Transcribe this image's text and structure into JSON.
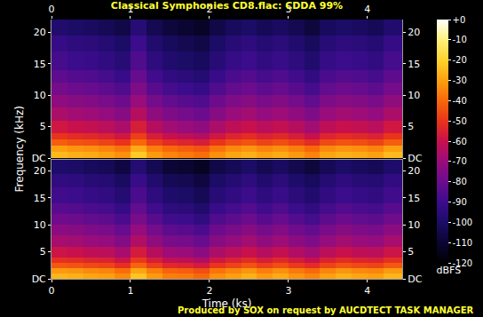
{
  "chart_data": {
    "type": "heatmap",
    "title": "Classical Symphonies CD8.flac: CDDA 99%",
    "x_label": "Time (ks)",
    "y_label": "Frequency (kHz)",
    "annotations": [
      "Produced by SOX on request by AUCDTECT TASK MANAGER"
    ],
    "xlim": [
      0,
      4.44
    ],
    "xticks": [
      0,
      1,
      2,
      3,
      4
    ],
    "ylim": [
      0,
      22.05
    ],
    "yticks": [
      {
        "value": 0,
        "label": "DC"
      },
      5,
      10,
      15,
      20
    ],
    "x": [
      0,
      0.2,
      0.4,
      0.6,
      0.8,
      1.0,
      1.2,
      1.4,
      1.6,
      1.8,
      2.0,
      2.2,
      2.4,
      2.6,
      2.8,
      3.0,
      3.2,
      3.4,
      3.6,
      3.8,
      4.0,
      4.2,
      4.44
    ],
    "y": [
      0,
      1,
      2,
      3,
      4,
      6,
      8,
      10,
      12,
      14,
      17,
      19.5,
      22.05
    ],
    "colorbar": {
      "range": [
        -120,
        0
      ],
      "ticks": [
        {
          "value": 0,
          "label": "+0"
        },
        -10,
        -20,
        -30,
        -40,
        -50,
        -60,
        -70,
        -80,
        -90,
        -100,
        -110,
        -120
      ],
      "title": "dBFS"
    },
    "cells": [
      [
        [
          -25,
          -27,
          -28,
          -30,
          -33,
          -22,
          -31,
          -35,
          -37,
          -39,
          -33,
          -29,
          -27,
          -30,
          -28,
          -31,
          -35,
          -29,
          -27,
          -28,
          -30,
          -25
        ],
        [
          -30,
          -32,
          -33,
          -35,
          -38,
          -28,
          -36,
          -40,
          -42,
          -44,
          -38,
          -34,
          -32,
          -35,
          -33,
          -36,
          -40,
          -34,
          -32,
          -33,
          -35,
          -30
        ],
        [
          -42,
          -44,
          -45,
          -47,
          -50,
          -40,
          -48,
          -52,
          -54,
          -56,
          -50,
          -46,
          -44,
          -47,
          -45,
          -48,
          -52,
          -46,
          -44,
          -45,
          -47,
          -42
        ],
        [
          -50,
          -52,
          -53,
          -55,
          -58,
          -48,
          -56,
          -60,
          -62,
          -64,
          -58,
          -54,
          -52,
          -55,
          -53,
          -56,
          -60,
          -54,
          -52,
          -53,
          -55,
          -50
        ],
        [
          -58,
          -60,
          -61,
          -63,
          -66,
          -56,
          -64,
          -68,
          -70,
          -72,
          -66,
          -62,
          -60,
          -63,
          -61,
          -64,
          -68,
          -62,
          -60,
          -61,
          -63,
          -58
        ],
        [
          -66,
          -68,
          -69,
          -71,
          -74,
          -64,
          -72,
          -76,
          -78,
          -80,
          -74,
          -70,
          -68,
          -71,
          -69,
          -72,
          -76,
          -70,
          -68,
          -69,
          -71,
          -66
        ],
        [
          -72,
          -74,
          -75,
          -77,
          -80,
          -70,
          -78,
          -82,
          -84,
          -86,
          -80,
          -76,
          -74,
          -77,
          -75,
          -78,
          -82,
          -76,
          -74,
          -75,
          -77,
          -72
        ],
        [
          -78,
          -80,
          -81,
          -83,
          -86,
          -76,
          -84,
          -88,
          -90,
          -92,
          -86,
          -82,
          -80,
          -83,
          -81,
          -84,
          -88,
          -82,
          -80,
          -81,
          -83,
          -78
        ],
        [
          -83,
          -85,
          -86,
          -88,
          -91,
          -81,
          -89,
          -93,
          -95,
          -97,
          -91,
          -87,
          -85,
          -88,
          -86,
          -89,
          -93,
          -87,
          -85,
          -86,
          -88,
          -83
        ],
        [
          -88,
          -90,
          -91,
          -93,
          -96,
          -86,
          -94,
          -98,
          -100,
          -102,
          -96,
          -92,
          -90,
          -93,
          -91,
          -94,
          -98,
          -92,
          -90,
          -91,
          -93,
          -88
        ],
        [
          -92,
          -94,
          -95,
          -97,
          -100,
          -90,
          -98,
          -102,
          -104,
          -106,
          -100,
          -96,
          -94,
          -97,
          -95,
          -98,
          -102,
          -96,
          -94,
          -95,
          -97,
          -92
        ],
        [
          -98,
          -100,
          -101,
          -103,
          -106,
          -96,
          -104,
          -108,
          -110,
          -112,
          -106,
          -102,
          -100,
          -103,
          -101,
          -104,
          -108,
          -102,
          -100,
          -101,
          -103,
          -98
        ]
      ],
      [
        [
          -26,
          -27,
          -29,
          -30,
          -34,
          -23,
          -31,
          -36,
          -37,
          -40,
          -33,
          -30,
          -27,
          -31,
          -28,
          -32,
          -35,
          -30,
          -27,
          -29,
          -30,
          -26
        ],
        [
          -31,
          -32,
          -34,
          -35,
          -39,
          -29,
          -36,
          -41,
          -42,
          -45,
          -38,
          -35,
          -32,
          -36,
          -33,
          -37,
          -40,
          -35,
          -32,
          -34,
          -35,
          -31
        ],
        [
          -43,
          -44,
          -46,
          -47,
          -51,
          -41,
          -48,
          -53,
          -54,
          -57,
          -50,
          -47,
          -44,
          -48,
          -45,
          -49,
          -52,
          -47,
          -44,
          -46,
          -47,
          -43
        ],
        [
          -51,
          -52,
          -54,
          -55,
          -59,
          -49,
          -56,
          -61,
          -62,
          -65,
          -58,
          -55,
          -52,
          -56,
          -53,
          -57,
          -60,
          -55,
          -52,
          -54,
          -55,
          -51
        ],
        [
          -59,
          -60,
          -62,
          -63,
          -67,
          -57,
          -64,
          -69,
          -70,
          -73,
          -66,
          -63,
          -60,
          -64,
          -61,
          -65,
          -68,
          -63,
          -60,
          -62,
          -63,
          -59
        ],
        [
          -67,
          -68,
          -70,
          -71,
          -75,
          -65,
          -72,
          -77,
          -78,
          -81,
          -74,
          -71,
          -68,
          -72,
          -69,
          -73,
          -76,
          -71,
          -68,
          -70,
          -71,
          -67
        ],
        [
          -73,
          -74,
          -76,
          -77,
          -81,
          -71,
          -78,
          -83,
          -84,
          -87,
          -80,
          -77,
          -74,
          -78,
          -75,
          -79,
          -82,
          -77,
          -74,
          -76,
          -77,
          -73
        ],
        [
          -79,
          -80,
          -82,
          -83,
          -87,
          -77,
          -84,
          -89,
          -90,
          -93,
          -86,
          -83,
          -80,
          -84,
          -81,
          -85,
          -88,
          -83,
          -80,
          -82,
          -83,
          -79
        ],
        [
          -84,
          -85,
          -87,
          -88,
          -92,
          -82,
          -89,
          -94,
          -95,
          -98,
          -91,
          -88,
          -85,
          -89,
          -86,
          -90,
          -93,
          -88,
          -85,
          -87,
          -88,
          -84
        ],
        [
          -89,
          -90,
          -92,
          -93,
          -97,
          -87,
          -94,
          -99,
          -100,
          -103,
          -96,
          -93,
          -90,
          -94,
          -91,
          -95,
          -98,
          -93,
          -90,
          -92,
          -93,
          -89
        ],
        [
          -93,
          -94,
          -96,
          -97,
          -101,
          -91,
          -98,
          -103,
          -104,
          -107,
          -100,
          -97,
          -94,
          -98,
          -95,
          -99,
          -102,
          -97,
          -94,
          -96,
          -97,
          -93
        ],
        [
          -99,
          -100,
          -102,
          -103,
          -107,
          -97,
          -104,
          -109,
          -110,
          -113,
          -106,
          -103,
          -100,
          -104,
          -101,
          -105,
          -108,
          -103,
          -100,
          -102,
          -103,
          -99
        ]
      ]
    ]
  }
}
